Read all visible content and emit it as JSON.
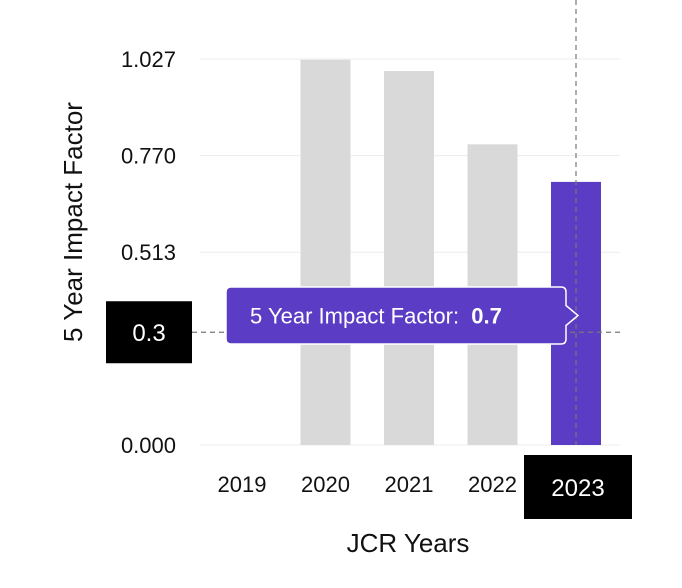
{
  "chart_data": {
    "type": "bar",
    "ylabel": "5 Year Impact Factor",
    "xlabel": "JCR Years",
    "categories": [
      "2019",
      "2020",
      "2021",
      "2022",
      "2023"
    ],
    "values": [
      null,
      1.025,
      0.995,
      0.8,
      0.7
    ],
    "yticks": [
      "0.000",
      "0.513",
      "0.770",
      "1.027"
    ],
    "ytick_values": [
      0,
      0.513,
      0.77,
      1.027
    ],
    "ylim": [
      0,
      1.027
    ],
    "grid": true,
    "highlight_index": 4,
    "colors": {
      "bar": "#d9d9d9",
      "highlight": "#5b3cc4",
      "tooltip": "#5b3cc4",
      "marker_box": "#000000"
    },
    "hover_y_label": "0.3",
    "hover_y_value": 0.3,
    "tooltip": {
      "label": "5 Year Impact Factor:",
      "value": "0.7"
    }
  }
}
